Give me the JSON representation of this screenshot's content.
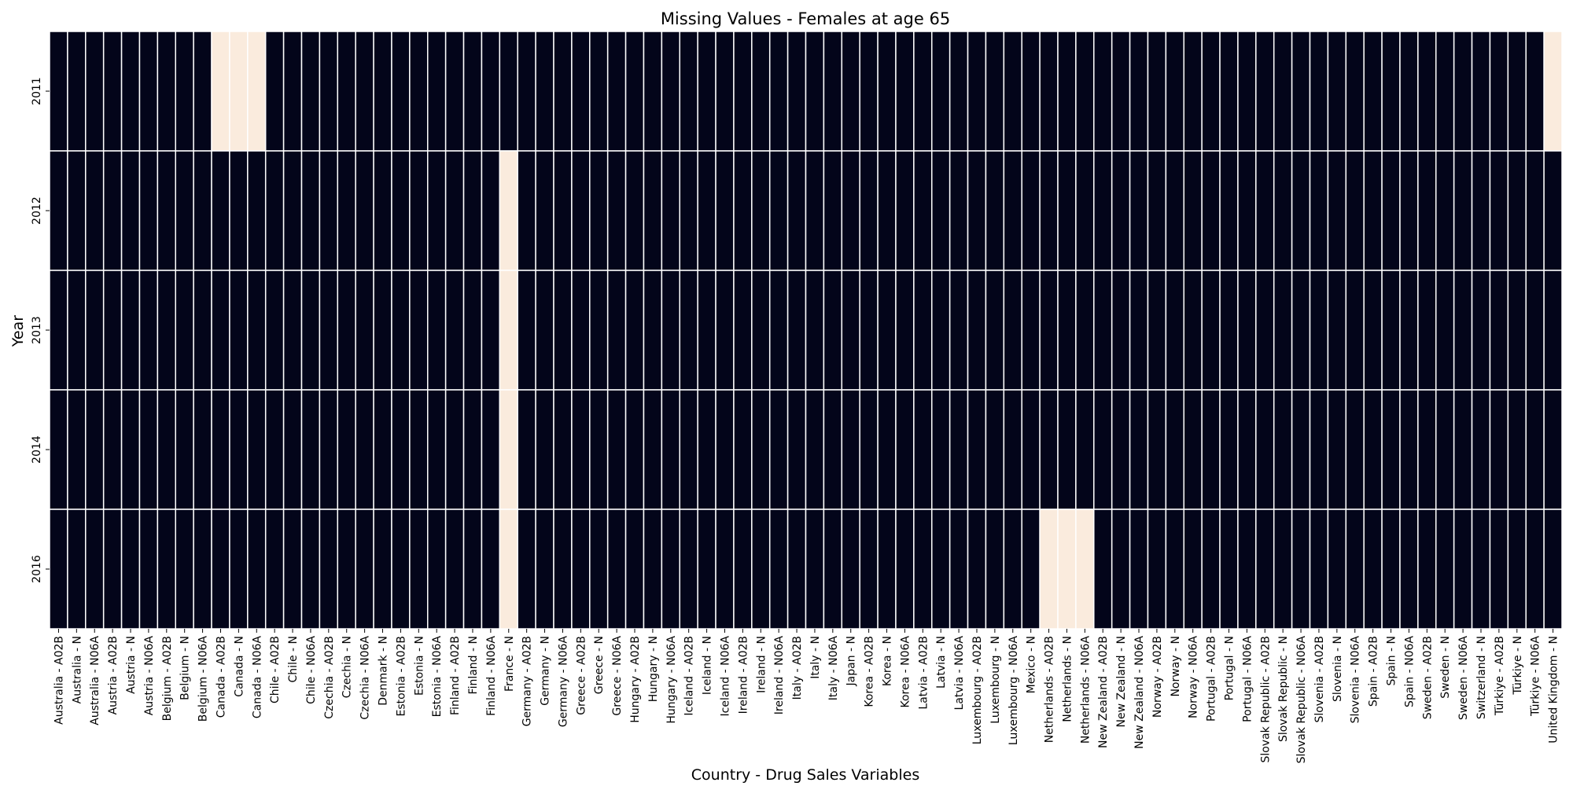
{
  "chart_data": {
    "type": "heatmap",
    "title": "Missing Values - Females at age 65",
    "xlabel": "Country - Drug Sales Variables",
    "ylabel": "Year",
    "legend": "none",
    "colors": {
      "present": "#03051a",
      "missing": "#faebdd",
      "grid": "#ffffff"
    },
    "values_meaning": "1 = missing value, 0 = value present",
    "years": [
      "2011",
      "2012",
      "2013",
      "2014",
      "2016"
    ],
    "variables": [
      "Australia - A02B",
      "Australia - N",
      "Australia - N06A",
      "Austria - A02B",
      "Austria - N",
      "Austria - N06A",
      "Belgium - A02B",
      "Belgium - N",
      "Belgium - N06A",
      "Canada - A02B",
      "Canada - N",
      "Canada - N06A",
      "Chile - A02B",
      "Chile - N",
      "Chile - N06A",
      "Czechia - A02B",
      "Czechia - N",
      "Czechia - N06A",
      "Denmark - N",
      "Estonia - A02B",
      "Estonia - N",
      "Estonia - N06A",
      "Finland - A02B",
      "Finland - N",
      "Finland - N06A",
      "France - N",
      "Germany - A02B",
      "Germany - N",
      "Germany - N06A",
      "Greece - A02B",
      "Greece - N",
      "Greece - N06A",
      "Hungary - A02B",
      "Hungary - N",
      "Hungary - N06A",
      "Iceland - A02B",
      "Iceland - N",
      "Iceland - N06A",
      "Ireland - A02B",
      "Ireland - N",
      "Ireland - N06A",
      "Italy - A02B",
      "Italy - N",
      "Italy - N06A",
      "Japan - N",
      "Korea - A02B",
      "Korea - N",
      "Korea - N06A",
      "Latvia - A02B",
      "Latvia - N",
      "Latvia - N06A",
      "Luxembourg - A02B",
      "Luxembourg - N",
      "Luxembourg - N06A",
      "Mexico - N",
      "Netherlands - A02B",
      "Netherlands - N",
      "Netherlands - N06A",
      "New Zealand - A02B",
      "New Zealand - N",
      "New Zealand - N06A",
      "Norway - A02B",
      "Norway - N",
      "Norway - N06A",
      "Portugal - A02B",
      "Portugal - N",
      "Portugal - N06A",
      "Slovak Republic - A02B",
      "Slovak Republic - N",
      "Slovak Republic - N06A",
      "Slovenia - A02B",
      "Slovenia - N",
      "Slovenia - N06A",
      "Spain - A02B",
      "Spain - N",
      "Spain - N06A",
      "Sweden - A02B",
      "Sweden - N",
      "Sweden - N06A",
      "Switzerland - N",
      "Türkiye - A02B",
      "Türkiye - N",
      "Türkiye - N06A",
      "United Kingdom - N"
    ],
    "missing_cells": [
      {
        "year": "2011",
        "variable": "Canada - A02B"
      },
      {
        "year": "2011",
        "variable": "Canada - N"
      },
      {
        "year": "2011",
        "variable": "Canada - N06A"
      },
      {
        "year": "2011",
        "variable": "United Kingdom - N"
      },
      {
        "year": "2012",
        "variable": "France - N"
      },
      {
        "year": "2013",
        "variable": "France - N"
      },
      {
        "year": "2014",
        "variable": "France - N"
      },
      {
        "year": "2016",
        "variable": "France - N"
      },
      {
        "year": "2016",
        "variable": "Netherlands - A02B"
      },
      {
        "year": "2016",
        "variable": "Netherlands - N"
      },
      {
        "year": "2016",
        "variable": "Netherlands - N06A"
      }
    ]
  }
}
